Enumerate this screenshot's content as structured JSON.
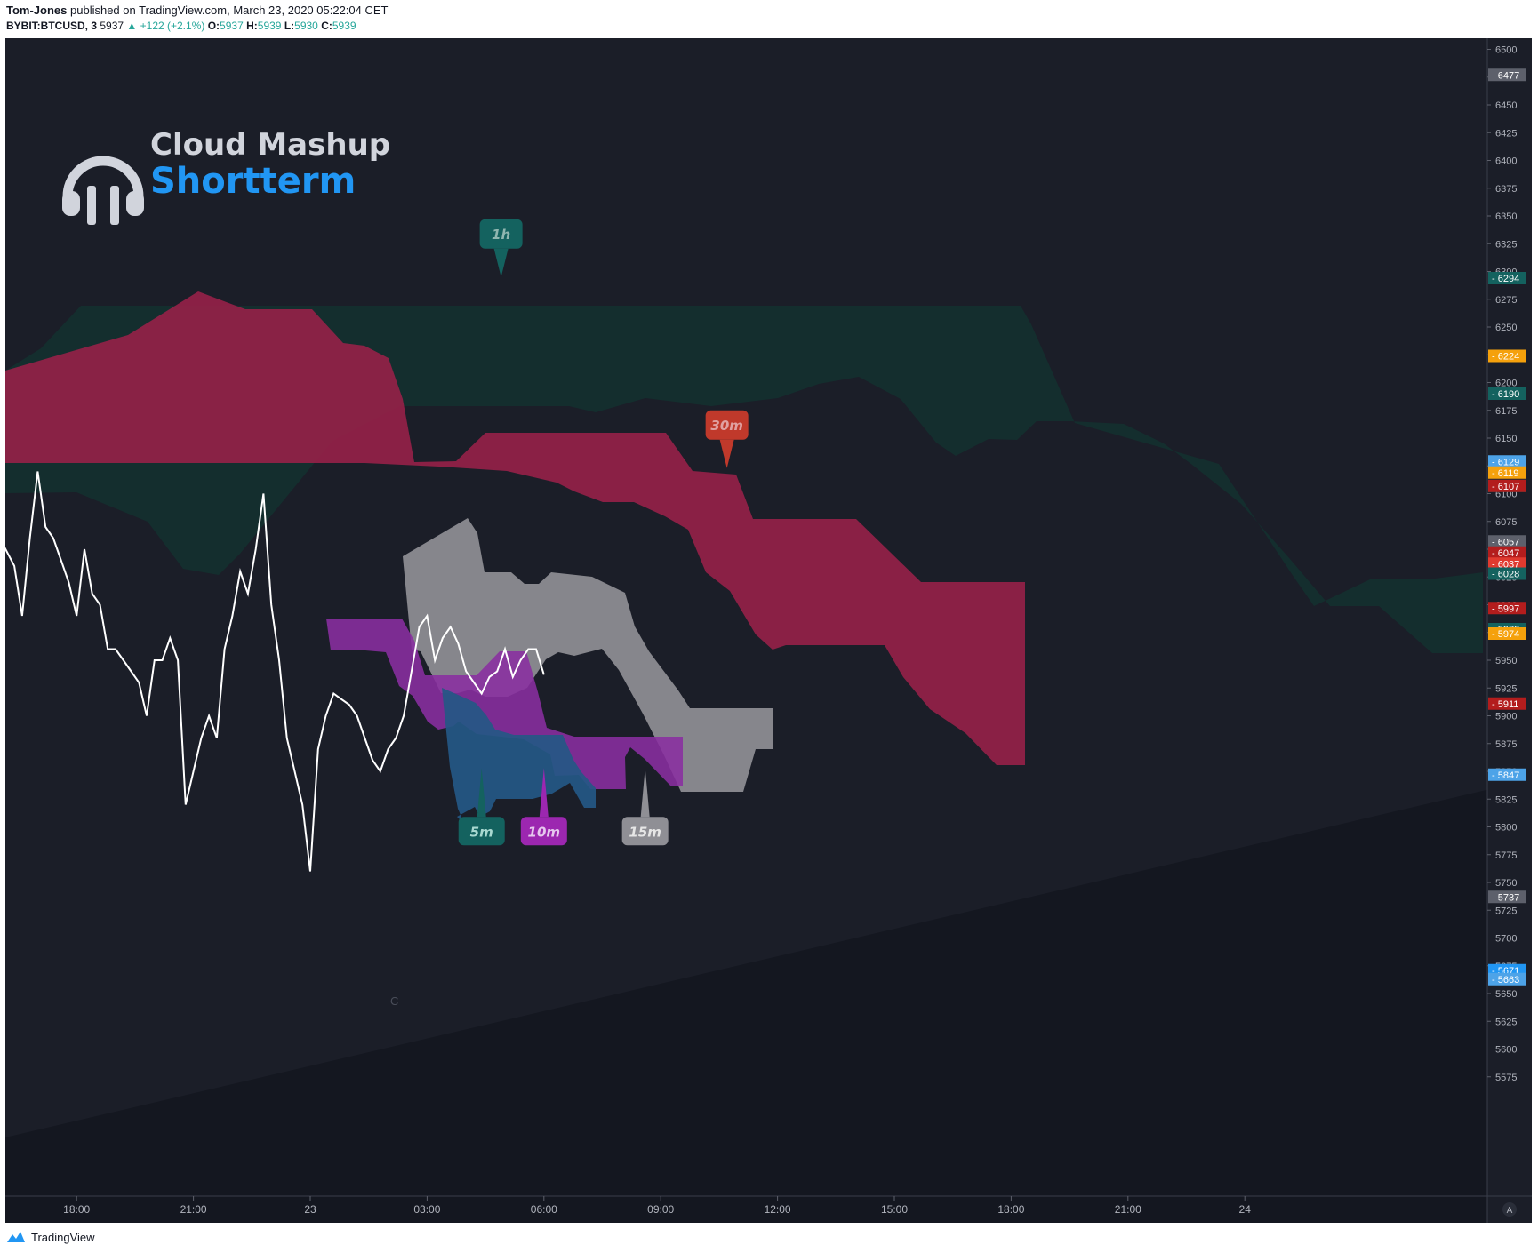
{
  "header": {
    "author": "Tom-Jones",
    "published_text": " published on TradingView.com, March 23, 2020 05:22:04 CET",
    "symbol": "BYBIT:BTCUSD, 3",
    "price": "5937",
    "change": "+122 (+2.1%)",
    "open_label": "O:",
    "open": "5937",
    "high_label": "H:",
    "high": "5939",
    "low_label": "L:",
    "low": "5930",
    "close_label": "C:",
    "close": "5939"
  },
  "logo": {
    "line1": "Cloud Mashup",
    "line2": "Shortterm"
  },
  "footer": {
    "brand": "TradingView"
  },
  "colors": {
    "background": "#1b1e28",
    "cloud_1h": "#14302f",
    "cloud_30m": "#9a2149",
    "cloud_15m": "#8f8f95",
    "cloud_10m": "#8a2fa0",
    "cloud_5m": "#245886",
    "price_line": "#ffffff",
    "logo_blue": "#2196f3"
  },
  "chart_data": {
    "type": "line",
    "title": "",
    "xlabel": "",
    "ylabel": "",
    "ylim": [
      5550,
      6510
    ],
    "y_ticks": [
      5575,
      5600,
      5625,
      5650,
      5675,
      5700,
      5725,
      5750,
      5775,
      5800,
      5825,
      5850,
      5875,
      5900,
      5925,
      5950,
      5975,
      6000,
      6025,
      6050,
      6075,
      6100,
      6125,
      6150,
      6175,
      6200,
      6225,
      6250,
      6275,
      6300,
      6325,
      6350,
      6375,
      6400,
      6425,
      6450,
      6475,
      6500
    ],
    "x_ticks": [
      {
        "label": "18:00",
        "hour": -6
      },
      {
        "label": "21:00",
        "hour": -3
      },
      {
        "label": "23",
        "hour": 0
      },
      {
        "label": "03:00",
        "hour": 3
      },
      {
        "label": "06:00",
        "hour": 6
      },
      {
        "label": "09:00",
        "hour": 9
      },
      {
        "label": "12:00",
        "hour": 12
      },
      {
        "label": "15:00",
        "hour": 15
      },
      {
        "label": "18:00",
        "hour": 18
      },
      {
        "label": "21:00",
        "hour": 21
      },
      {
        "label": "24",
        "hour": 24
      }
    ],
    "axis_corner_label": "A",
    "price_badges": [
      {
        "value": "6477",
        "color": "#5d606b"
      },
      {
        "value": "6294",
        "color": "#14625f"
      },
      {
        "value": "6224",
        "color": "#f5a10c"
      },
      {
        "value": "6190",
        "color": "#14625f"
      },
      {
        "value": "6129",
        "color": "#4da3e8"
      },
      {
        "value": "6119",
        "color": "#f5a10c"
      },
      {
        "value": "6107",
        "color": "#14625f"
      },
      {
        "value": "6107",
        "color": "#b31d1d"
      },
      {
        "value": "6057",
        "color": "#5d606b"
      },
      {
        "value": "6047",
        "color": "#b31d1d"
      },
      {
        "value": "6037",
        "color": "#e03a2f"
      },
      {
        "value": "6028",
        "color": "#14625f"
      },
      {
        "value": "5997",
        "color": "#b31d1d"
      },
      {
        "value": "5978",
        "color": "#14625f"
      },
      {
        "value": "5974",
        "color": "#f5a10c"
      },
      {
        "value": "5911",
        "color": "#b31d1d"
      },
      {
        "value": "5847",
        "color": "#4da3e8"
      },
      {
        "value": "5737",
        "color": "#5d606b"
      },
      {
        "value": "5671",
        "color": "#2196f3"
      },
      {
        "value": "5663",
        "color": "#4da3e8"
      }
    ],
    "series": [
      {
        "name": "",
        "x_hours": [
          -7.9,
          -7.6,
          -7.4,
          -7.2,
          -7.0,
          -6.8,
          -6.6,
          -6.4,
          -6.2,
          -6.0,
          -5.8,
          -5.6,
          -5.4,
          -5.2,
          -5.0,
          -4.8,
          -4.6,
          -4.4,
          -4.2,
          -4.0,
          -3.8,
          -3.6,
          -3.4,
          -3.2,
          -3.0,
          -2.8,
          -2.6,
          -2.4,
          -2.2,
          -2.0,
          -1.8,
          -1.6,
          -1.4,
          -1.2,
          -1.0,
          -0.8,
          -0.6,
          -0.4,
          -0.2,
          0.0,
          0.2,
          0.4,
          0.6,
          0.8,
          1.0,
          1.2,
          1.4,
          1.6,
          1.8,
          2.0,
          2.2,
          2.4,
          2.6,
          2.8,
          3.0,
          3.2,
          3.4,
          3.6,
          3.8,
          4.0,
          4.2,
          4.4,
          4.6,
          4.8,
          5.0,
          5.2,
          5.4,
          5.6,
          5.8,
          6.0
        ],
        "y": [
          6055,
          6035,
          5990,
          6060,
          6120,
          6070,
          6060,
          6040,
          6020,
          5990,
          6050,
          6010,
          6000,
          5960,
          5960,
          5950,
          5940,
          5930,
          5900,
          5950,
          5950,
          5970,
          5950,
          5820,
          5850,
          5880,
          5900,
          5880,
          5960,
          5990,
          6030,
          6010,
          6050,
          6100,
          6000,
          5950,
          5880,
          5850,
          5820,
          5760,
          5870,
          5900,
          5920,
          5915,
          5910,
          5900,
          5880,
          5860,
          5850,
          5870,
          5880,
          5900,
          5940,
          5980,
          5990,
          5950,
          5970,
          5980,
          5965,
          5940,
          5930,
          5920,
          5935,
          5940,
          5960,
          5935,
          5950,
          5960,
          5960,
          5937
        ]
      }
    ],
    "clouds": [
      {
        "name": "1h",
        "label": "1h",
        "label_at": {
          "hour": 4.9,
          "price": 6295
        }
      },
      {
        "name": "30m",
        "label": "30m",
        "label_at": {
          "hour": 10.7,
          "price": 6123
        }
      },
      {
        "name": "15m",
        "label": "15m",
        "label_at": {
          "hour": 8.6,
          "price": 5853
        }
      },
      {
        "name": "10m",
        "label": "10m",
        "label_at": {
          "hour": 6.0,
          "price": 5853
        }
      },
      {
        "name": "5m",
        "label": "5m",
        "label_at": {
          "hour": 4.4,
          "price": 5853
        }
      }
    ],
    "annotations": [
      {
        "text": "C"
      }
    ]
  }
}
